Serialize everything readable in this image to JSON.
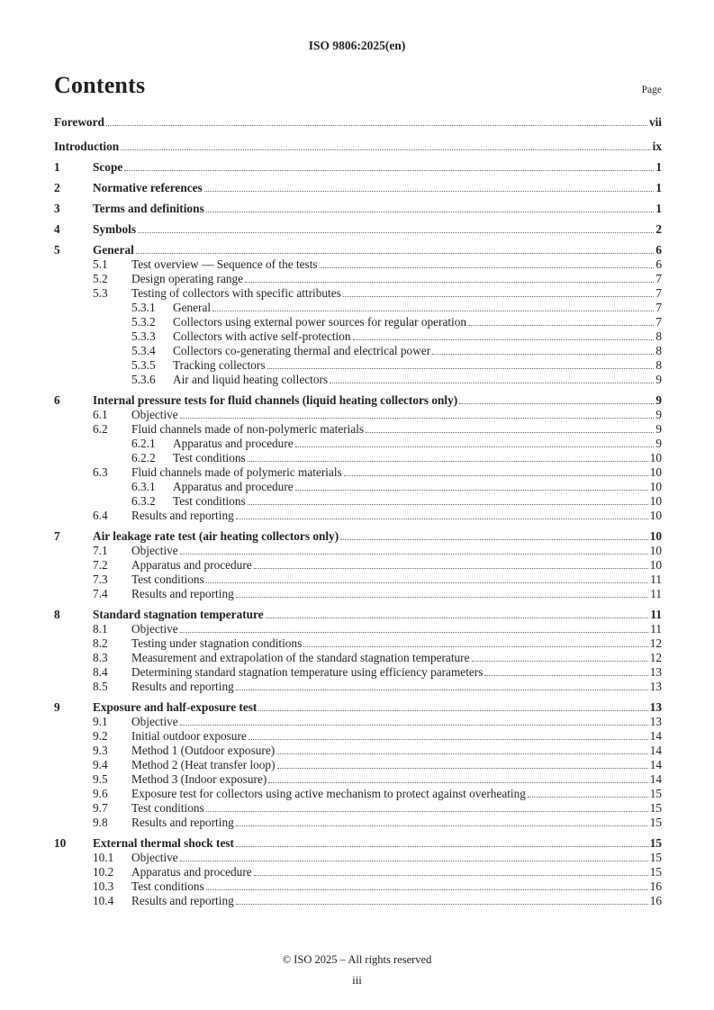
{
  "header": {
    "doc_ref": "ISO 9806:2025(en)"
  },
  "contents": {
    "title": "Contents",
    "page_column_label": "Page"
  },
  "toc": {
    "front_matter": [
      {
        "title": "Foreword",
        "page": "vii"
      },
      {
        "title": "Introduction",
        "page": "ix"
      }
    ],
    "entries": [
      {
        "num": "1",
        "title": "Scope",
        "page": "1",
        "level": 0
      },
      {
        "num": "2",
        "title": "Normative references",
        "page": "1",
        "level": 0
      },
      {
        "num": "3",
        "title": "Terms and definitions",
        "page": "1",
        "level": 0
      },
      {
        "num": "4",
        "title": "Symbols",
        "page": "2",
        "level": 0
      },
      {
        "num": "5",
        "title": "General",
        "page": "6",
        "level": 0
      },
      {
        "num": "5.1",
        "title": "Test overview — Sequence of the tests",
        "page": "6",
        "level": 1
      },
      {
        "num": "5.2",
        "title": "Design operating range",
        "page": "7",
        "level": 1
      },
      {
        "num": "5.3",
        "title": "Testing of collectors with specific attributes",
        "page": "7",
        "level": 1
      },
      {
        "num": "5.3.1",
        "title": "General",
        "page": "7",
        "level": 2
      },
      {
        "num": "5.3.2",
        "title": "Collectors using external power sources for regular operation",
        "page": "7",
        "level": 2
      },
      {
        "num": "5.3.3",
        "title": "Collectors with active self-protection",
        "page": "8",
        "level": 2
      },
      {
        "num": "5.3.4",
        "title": "Collectors co-generating thermal and electrical power",
        "page": "8",
        "level": 2
      },
      {
        "num": "5.3.5",
        "title": "Tracking collectors",
        "page": "8",
        "level": 2
      },
      {
        "num": "5.3.6",
        "title": "Air and liquid heating collectors",
        "page": "9",
        "level": 2
      },
      {
        "num": "6",
        "title": "Internal pressure tests for fluid channels (liquid heating collectors only)",
        "page": "9",
        "level": 0
      },
      {
        "num": "6.1",
        "title": "Objective",
        "page": "9",
        "level": 1
      },
      {
        "num": "6.2",
        "title": "Fluid channels made of non-polymeric materials",
        "page": "9",
        "level": 1
      },
      {
        "num": "6.2.1",
        "title": "Apparatus and procedure",
        "page": "9",
        "level": 2
      },
      {
        "num": "6.2.2",
        "title": "Test conditions",
        "page": "10",
        "level": 2
      },
      {
        "num": "6.3",
        "title": "Fluid channels made of polymeric materials",
        "page": "10",
        "level": 1
      },
      {
        "num": "6.3.1",
        "title": "Apparatus and procedure",
        "page": "10",
        "level": 2
      },
      {
        "num": "6.3.2",
        "title": "Test conditions",
        "page": "10",
        "level": 2
      },
      {
        "num": "6.4",
        "title": "Results and reporting",
        "page": "10",
        "level": 1
      },
      {
        "num": "7",
        "title": "Air leakage rate test (air heating collectors only)",
        "page": "10",
        "level": 0
      },
      {
        "num": "7.1",
        "title": "Objective",
        "page": "10",
        "level": 1
      },
      {
        "num": "7.2",
        "title": "Apparatus and procedure",
        "page": "10",
        "level": 1
      },
      {
        "num": "7.3",
        "title": "Test conditions",
        "page": "11",
        "level": 1
      },
      {
        "num": "7.4",
        "title": "Results and reporting",
        "page": "11",
        "level": 1
      },
      {
        "num": "8",
        "title": "Standard stagnation temperature",
        "page": "11",
        "level": 0
      },
      {
        "num": "8.1",
        "title": "Objective",
        "page": "11",
        "level": 1
      },
      {
        "num": "8.2",
        "title": "Testing under stagnation conditions",
        "page": "12",
        "level": 1
      },
      {
        "num": "8.3",
        "title": "Measurement and extrapolation of the standard stagnation temperature",
        "page": "12",
        "level": 1
      },
      {
        "num": "8.4",
        "title": "Determining standard stagnation temperature using efficiency parameters",
        "page": "13",
        "level": 1
      },
      {
        "num": "8.5",
        "title": "Results and reporting",
        "page": "13",
        "level": 1
      },
      {
        "num": "9",
        "title": "Exposure and half-exposure test",
        "page": "13",
        "level": 0
      },
      {
        "num": "9.1",
        "title": "Objective",
        "page": "13",
        "level": 1
      },
      {
        "num": "9.2",
        "title": "Initial outdoor exposure",
        "page": "14",
        "level": 1
      },
      {
        "num": "9.3",
        "title": "Method 1 (Outdoor exposure)",
        "page": "14",
        "level": 1
      },
      {
        "num": "9.4",
        "title": "Method 2 (Heat transfer loop)",
        "page": "14",
        "level": 1
      },
      {
        "num": "9.5",
        "title": "Method 3 (Indoor exposure)",
        "page": "14",
        "level": 1
      },
      {
        "num": "9.6",
        "title": "Exposure test for collectors using active mechanism to protect against overheating",
        "page": "15",
        "level": 1
      },
      {
        "num": "9.7",
        "title": "Test conditions",
        "page": "15",
        "level": 1
      },
      {
        "num": "9.8",
        "title": "Results and reporting",
        "page": "15",
        "level": 1
      },
      {
        "num": "10",
        "title": "External thermal shock test",
        "page": "15",
        "level": 0
      },
      {
        "num": "10.1",
        "title": "Objective",
        "page": "15",
        "level": 1
      },
      {
        "num": "10.2",
        "title": "Apparatus and procedure",
        "page": "15",
        "level": 1
      },
      {
        "num": "10.3",
        "title": "Test conditions",
        "page": "16",
        "level": 1
      },
      {
        "num": "10.4",
        "title": "Results and reporting",
        "page": "16",
        "level": 1
      }
    ]
  },
  "footer": {
    "copyright": "© ISO 2025 – All rights reserved",
    "page_number": "iii"
  }
}
